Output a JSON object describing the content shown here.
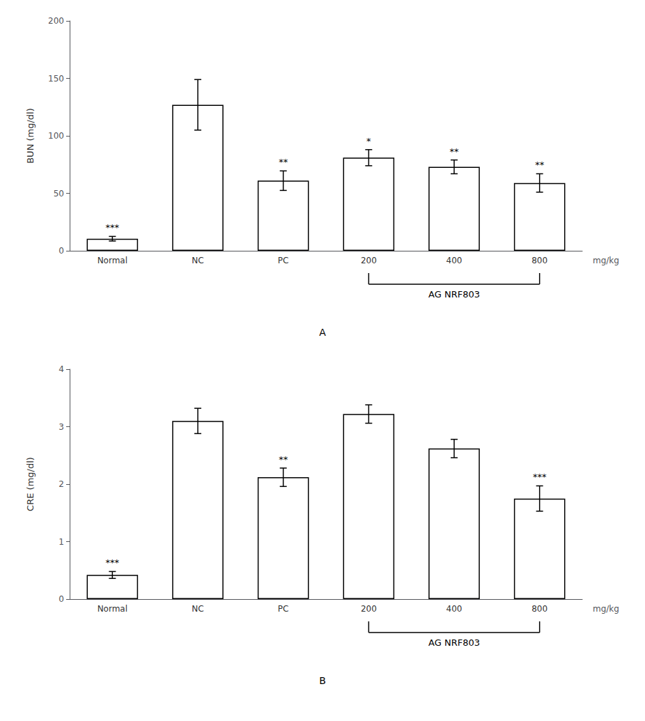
{
  "chart_data": [
    {
      "type": "bar",
      "title": "A",
      "ylabel": "BUN (mg/dl)",
      "xlabel": "mg/kg",
      "categories": [
        "Normal",
        "NC",
        "PC",
        "200",
        "400",
        "800"
      ],
      "values": [
        10.5,
        127.0,
        61.0,
        81.0,
        73.0,
        59.0
      ],
      "errors": [
        2.0,
        22.0,
        8.5,
        7.0,
        6.0,
        8.0
      ],
      "significance": [
        "***",
        null,
        "**",
        "*",
        "**",
        "**"
      ],
      "bracket": {
        "label": "AG NRF803",
        "from": "200",
        "to": "800"
      },
      "ylim": [
        0,
        200
      ],
      "yticks": [
        0,
        50,
        100,
        150,
        200
      ],
      "color": "#ffffff",
      "grid": false
    },
    {
      "type": "bar",
      "title": "B",
      "ylabel": "CRE (mg/dl)",
      "xlabel": "mg/kg",
      "categories": [
        "Normal",
        "NC",
        "PC",
        "200",
        "400",
        "800"
      ],
      "values": [
        0.42,
        3.1,
        2.12,
        3.22,
        2.62,
        1.75
      ],
      "errors": [
        0.06,
        0.22,
        0.16,
        0.16,
        0.16,
        0.22
      ],
      "significance": [
        "***",
        null,
        "**",
        null,
        null,
        "***"
      ],
      "bracket": {
        "label": "AG NRF803",
        "from": "200",
        "to": "800"
      },
      "ylim": [
        0,
        4
      ],
      "yticks": [
        0,
        1,
        2,
        3,
        4
      ],
      "color": "#ffffff",
      "grid": false
    }
  ]
}
